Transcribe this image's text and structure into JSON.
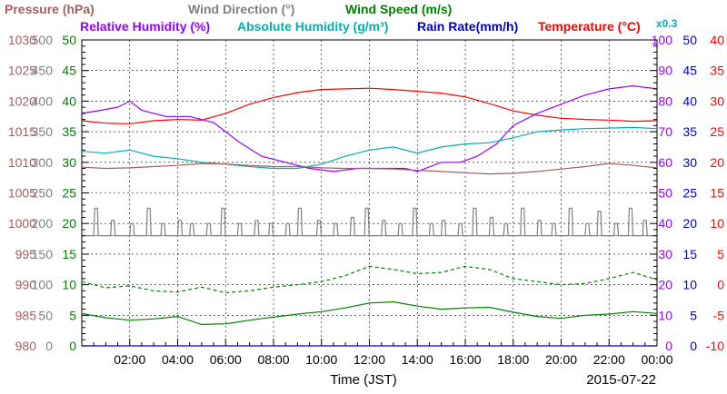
{
  "chart_data": {
    "type": "line",
    "legend_row1": [
      {
        "text": "Pressure (hPa)",
        "color": "#a06060"
      },
      {
        "text": "Wind Direction (°)",
        "color": "#808080"
      },
      {
        "text": "Wind Speed (m/s)",
        "color": "#008000"
      }
    ],
    "legend_row2": [
      {
        "text": "Relative Humidity (%)",
        "color": "#9900ff"
      },
      {
        "text": "Absolute Humidity (g/m³)",
        "color": "#00b0b0"
      },
      {
        "text": "Rain Rate(mm/h)",
        "color": "#0000cc"
      },
      {
        "text": "Temperature (°C)",
        "color": "#ff0000"
      }
    ],
    "rain_scale_note": "x0.3",
    "xlabel": "Time (JST)",
    "date": "2015-07-22",
    "x_ticks": [
      "02:00",
      "04:00",
      "06:00",
      "08:00",
      "10:00",
      "12:00",
      "14:00",
      "16:00",
      "18:00",
      "20:00",
      "22:00",
      "00:00"
    ],
    "x_range_hours": [
      0,
      24
    ],
    "grid": true,
    "axes": [
      {
        "name": "Pressure (hPa)",
        "color": "#a06060",
        "range": [
          980,
          1030
        ],
        "ticks": [
          "980",
          "985",
          "990",
          "995",
          "1000",
          "1005",
          "1010",
          "1015",
          "1020",
          "1025",
          "1030"
        ]
      },
      {
        "name": "Wind Direction (°)",
        "color": "#808080",
        "range": [
          0,
          500
        ],
        "ticks": [
          "0",
          "50",
          "100",
          "150",
          "200",
          "250",
          "300",
          "350",
          "400",
          "450",
          "500"
        ]
      },
      {
        "name": "Wind Speed (m/s)",
        "color": "#008000",
        "range": [
          0,
          50
        ],
        "ticks": [
          "0",
          "5",
          "10",
          "15",
          "20",
          "25",
          "30",
          "35",
          "40",
          "45",
          "50"
        ]
      },
      {
        "name": "Relative Humidity (%)",
        "color": "#9900ff",
        "range": [
          0,
          100
        ],
        "ticks": [
          "0",
          "10",
          "20",
          "30",
          "40",
          "50",
          "60",
          "70",
          "80",
          "90",
          "100"
        ]
      },
      {
        "name": "Rain Rate(mm/h)",
        "color": "#0000cc",
        "range": [
          0,
          50
        ],
        "ticks": [
          "0",
          "5",
          "10",
          "15",
          "20",
          "25",
          "30",
          "35",
          "40",
          "45",
          "50"
        ]
      },
      {
        "name": "Temperature (°C)",
        "color": "#ff0000",
        "range": [
          -10,
          40
        ],
        "ticks": [
          "-10",
          "-5",
          "0",
          "5",
          "10",
          "15",
          "20",
          "25",
          "30",
          "35",
          "40"
        ]
      }
    ],
    "series": [
      {
        "name": "Temperature (°C)",
        "color": "#ff0000",
        "axis": 5,
        "style": "solid",
        "x": [
          0,
          1,
          2,
          3,
          4,
          5,
          6,
          7,
          8,
          9,
          10,
          11,
          12,
          13,
          14,
          15,
          16,
          17,
          18,
          19,
          20,
          21,
          22,
          23,
          24
        ],
        "values": [
          26.8,
          26.4,
          26.3,
          26.8,
          27.0,
          26.9,
          28.0,
          29.5,
          30.6,
          31.4,
          31.9,
          32.0,
          32.1,
          31.9,
          31.6,
          31.3,
          30.7,
          29.6,
          28.4,
          27.7,
          27.2,
          27.0,
          26.9,
          26.7,
          26.8
        ]
      },
      {
        "name": "Relative Humidity (%)",
        "color": "#9900ff",
        "axis": 3,
        "style": "solid",
        "x": [
          0,
          0.8,
          1.5,
          2.0,
          2.5,
          3.5,
          4.5,
          5.5,
          6.5,
          7.5,
          8.5,
          9.5,
          10.5,
          11.5,
          12.5,
          13.5,
          14.0,
          15.0,
          15.8,
          16.5,
          17.3,
          18.0,
          19.0,
          20.0,
          21.0,
          22.0,
          23.0,
          24.0
        ],
        "values": [
          76,
          77,
          78,
          80,
          77,
          75,
          75,
          73,
          67,
          62,
          60,
          58,
          57,
          58,
          58,
          58,
          57,
          60,
          60,
          62,
          66,
          72,
          76,
          79,
          82,
          84,
          85,
          84
        ]
      },
      {
        "name": "Absolute Humidity (g/m³)",
        "color": "#00b0b0",
        "axis": 2,
        "style": "solid",
        "x": [
          0,
          1,
          2,
          3,
          4,
          5,
          6,
          7,
          8,
          9,
          10,
          11,
          12,
          13,
          14,
          15,
          16,
          17,
          18,
          19,
          20,
          21,
          22,
          23,
          24
        ],
        "values": [
          31.8,
          31.5,
          32.0,
          31.0,
          30.6,
          30.0,
          29.7,
          29.3,
          29.0,
          29.0,
          29.7,
          31.0,
          32.0,
          32.5,
          31.5,
          32.5,
          33.0,
          33.2,
          34.0,
          35.0,
          35.3,
          35.5,
          35.6,
          35.7,
          35.5
        ]
      },
      {
        "name": "Pressure (hPa)",
        "color": "#a06060",
        "axis": 0,
        "style": "solid",
        "x": [
          0,
          1,
          2,
          3,
          4,
          5,
          6,
          7,
          8,
          9,
          10,
          11,
          12,
          13,
          14,
          15,
          16,
          17,
          18,
          19,
          20,
          21,
          22,
          23,
          24
        ],
        "values": [
          1009.2,
          1009.0,
          1009.1,
          1009.3,
          1009.5,
          1009.8,
          1009.7,
          1009.5,
          1009.3,
          1009.3,
          1009.1,
          1009.0,
          1009.0,
          1008.9,
          1008.7,
          1008.5,
          1008.3,
          1008.1,
          1008.2,
          1008.5,
          1008.9,
          1009.3,
          1009.8,
          1009.5,
          1009.1
        ]
      },
      {
        "name": "Wind Direction (°)",
        "color": "#808080",
        "axis": 1,
        "style": "step",
        "base": 180,
        "peak": 225,
        "x": [
          0.5,
          1.2,
          2.0,
          2.7,
          3.3,
          4.0,
          4.5,
          5.2,
          5.8,
          6.5,
          7.2,
          7.8,
          8.5,
          9.0,
          9.8,
          10.5,
          11.2,
          11.8,
          12.5,
          13.2,
          13.8,
          14.5,
          15.0,
          15.7,
          16.3,
          17.0,
          17.6,
          18.3,
          19.0,
          19.6,
          20.3,
          21.0,
          21.5,
          22.2,
          22.8,
          23.4
        ],
        "values": [
          225,
          205,
          200,
          225,
          200,
          205,
          200,
          200,
          225,
          200,
          205,
          200,
          200,
          225,
          205,
          200,
          210,
          225,
          205,
          200,
          225,
          200,
          205,
          200,
          225,
          210,
          200,
          225,
          205,
          200,
          225,
          200,
          220,
          200,
          225,
          205
        ]
      },
      {
        "name": "Wind Speed (m/s) max",
        "color": "#008000",
        "axis": 2,
        "style": "dashed",
        "x": [
          0,
          1,
          2,
          3,
          4,
          5,
          6,
          7,
          8,
          9,
          10,
          11,
          12,
          13,
          14,
          15,
          16,
          17,
          18,
          19,
          20,
          21,
          22,
          23,
          24
        ],
        "values": [
          10.5,
          9.5,
          9.8,
          9.0,
          8.8,
          9.6,
          8.7,
          9.0,
          9.6,
          10.0,
          10.5,
          11.5,
          13.0,
          12.5,
          11.8,
          12.0,
          13.0,
          12.5,
          11.0,
          10.5,
          10.0,
          10.2,
          11.0,
          12.0,
          10.8
        ]
      },
      {
        "name": "Wind Speed (m/s)",
        "color": "#008000",
        "axis": 2,
        "style": "solid",
        "x": [
          0,
          1,
          2,
          3,
          4,
          5,
          6,
          7,
          8,
          9,
          10,
          11,
          12,
          13,
          14,
          15,
          16,
          17,
          18,
          19,
          20,
          21,
          22,
          23,
          24
        ],
        "values": [
          5.3,
          4.6,
          4.2,
          4.4,
          4.8,
          3.5,
          3.6,
          4.2,
          4.7,
          5.2,
          5.6,
          6.2,
          7.0,
          7.2,
          6.5,
          6.0,
          6.2,
          6.3,
          5.5,
          4.8,
          4.5,
          5.0,
          5.2,
          5.6,
          5.3
        ]
      },
      {
        "name": "Rain Rate(mm/h)",
        "color": "#0000cc",
        "axis": 4,
        "style": "solid",
        "x": [
          0,
          24
        ],
        "values": [
          0,
          0
        ]
      }
    ]
  }
}
